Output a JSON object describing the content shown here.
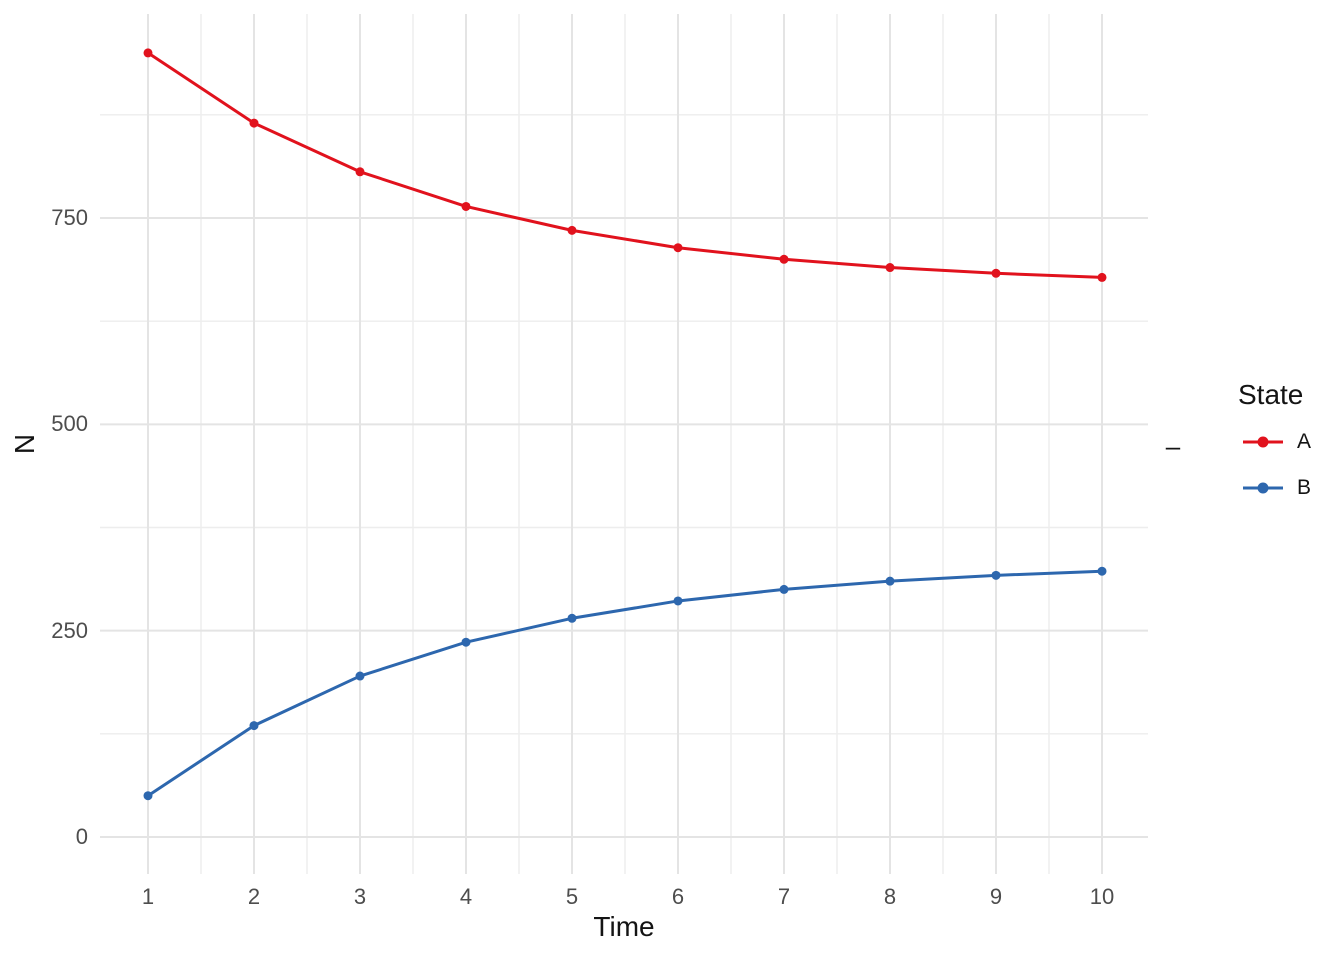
{
  "figure": {
    "x_axis_title": "Time",
    "y_axis_title": "N",
    "right_annotation": "–"
  },
  "legend": {
    "title": "State",
    "entries": [
      {
        "label": "A",
        "color": "#E1121D"
      },
      {
        "label": "B",
        "color": "#2D67AE"
      }
    ]
  },
  "chart_data": {
    "type": "line",
    "title": "",
    "xlabel": "Time",
    "ylabel": "N",
    "x": [
      1,
      2,
      3,
      4,
      5,
      6,
      7,
      8,
      9,
      10
    ],
    "series": [
      {
        "name": "A",
        "color": "#E1121D",
        "values": [
          950,
          865,
          806,
          764,
          735,
          714,
          700,
          690,
          683,
          678
        ]
      },
      {
        "name": "B",
        "color": "#2D67AE",
        "values": [
          50,
          135,
          195,
          236,
          265,
          286,
          300,
          310,
          317,
          322
        ]
      }
    ],
    "x_ticks": [
      1,
      2,
      3,
      4,
      5,
      6,
      7,
      8,
      9,
      10
    ],
    "x_tick_labels": [
      "1",
      "2",
      "3",
      "4",
      "5",
      "6",
      "7",
      "8",
      "9",
      "10"
    ],
    "y_ticks": [
      0,
      250,
      500,
      750
    ],
    "y_tick_labels": [
      "0",
      "250",
      "500",
      "750"
    ],
    "y_minor_ticks": [
      125,
      375,
      625,
      875
    ],
    "xlim": [
      0.55,
      10.43
    ],
    "ylim": [
      -45,
      997
    ],
    "grid": {
      "on": true,
      "major_color": "#E4E4E4",
      "minor_color": "#EDEDED"
    },
    "background_color": "#FFFFFF",
    "tick_label_color": "#4D4D4D",
    "legend_position": "right",
    "legend_title": "State"
  }
}
